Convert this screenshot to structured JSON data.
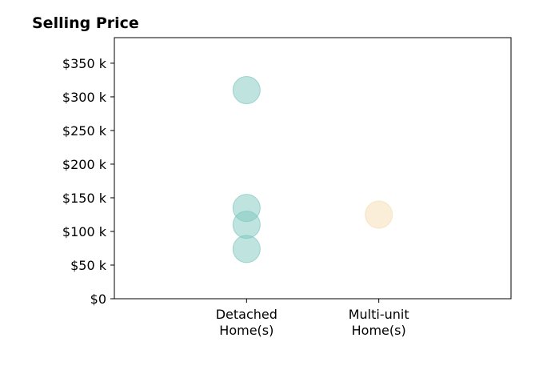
{
  "chart_data": {
    "type": "scatter",
    "title": "Selling Price",
    "xlabel": "",
    "ylabel": "",
    "categories": [
      "Detached\nHome(s)",
      "Multi-unit\nHome(s)"
    ],
    "ylim": [
      0,
      388000
    ],
    "yticks": [
      {
        "value": 0,
        "label": "$0"
      },
      {
        "value": 50000,
        "label": "$50 k"
      },
      {
        "value": 100000,
        "label": "$100 k"
      },
      {
        "value": 150000,
        "label": "$150 k"
      },
      {
        "value": 200000,
        "label": "$200 k"
      },
      {
        "value": 250000,
        "label": "$250 k"
      },
      {
        "value": 300000,
        "label": "$300 k"
      },
      {
        "value": 350000,
        "label": "$350 k"
      }
    ],
    "series": [
      {
        "category": "Detached\nHome(s)",
        "color": "#7fc8c0",
        "values": [
          310000,
          135000,
          110000,
          74000
        ]
      },
      {
        "category": "Multi-unit\nHome(s)",
        "color": "#f5deb3",
        "values": [
          125000
        ]
      }
    ],
    "grid": false,
    "legend": "none"
  }
}
